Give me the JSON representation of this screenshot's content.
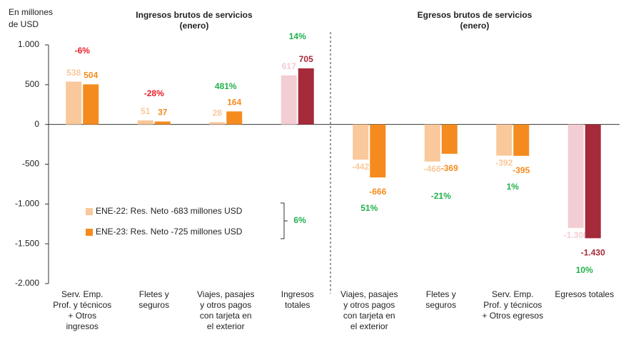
{
  "chart_data": {
    "type": "bar",
    "y_label": [
      "En millones",
      "de USD"
    ],
    "group_titles": [
      [
        "Ingresos brutos de servicios",
        "(enero)"
      ],
      [
        "Egresos brutos de servicios",
        "(enero)"
      ]
    ],
    "categories": [
      [
        "Serv. Emp.",
        "Prof. y técnicos",
        "+ Otros",
        "ingresos"
      ],
      [
        "Fletes y",
        "seguros"
      ],
      [
        "Viajes, pasajes",
        "y otros pagos",
        "con tarjeta en",
        "el exterior"
      ],
      [
        "Ingresos",
        "totales"
      ],
      [
        "Viajes, pasajes",
        "y otros pagos",
        "con tarjeta en",
        "el exterior"
      ],
      [
        "Fletes y",
        "seguros"
      ],
      [
        "Serv. Emp.",
        "Prof. y técnicos",
        "+ Otros egresos"
      ],
      [
        "Egresos totales"
      ]
    ],
    "series": [
      {
        "name": "ENE-22: Res. Neto -683 millones USD",
        "color": "#f9c89b",
        "colors": [
          "#f9c89b",
          "#f9c89b",
          "#f9c89b",
          "#f2cdd3",
          "#f9c89b",
          "#f9c89b",
          "#f9c89b",
          "#f2cdd3"
        ],
        "values": [
          538,
          51,
          28,
          617,
          -442,
          -466,
          -392,
          -1300
        ],
        "value_labels": [
          "538",
          "51",
          "28",
          "617",
          "-442",
          "-466",
          "-392",
          "-1.300"
        ]
      },
      {
        "name": "ENE-23: Res. Neto -725 millones USD",
        "color": "#f58b1f",
        "colors": [
          "#f58b1f",
          "#f58b1f",
          "#f58b1f",
          "#a52a3a",
          "#f58b1f",
          "#f58b1f",
          "#f58b1f",
          "#a52a3a"
        ],
        "values": [
          504,
          37,
          164,
          705,
          -666,
          -369,
          -395,
          -1430
        ],
        "value_labels": [
          "504",
          "37",
          "164",
          "705",
          "-666",
          "-369",
          "-395",
          "-1.430"
        ]
      }
    ],
    "change_labels": [
      "-6%",
      "-28%",
      "481%",
      "14%",
      "51%",
      "-21%",
      "1%",
      "10%"
    ],
    "change_colors": [
      "#e8202a",
      "#e8202a",
      "#22b14c",
      "#22b14c",
      "#22b14c",
      "#22b14c",
      "#22b14c",
      "#22b14c"
    ],
    "legend_change": "6%",
    "legend_change_color": "#22b14c",
    "ylim": [
      -2000,
      1000
    ],
    "yticks": [
      {
        "value": -2000,
        "label": "-2.000"
      },
      {
        "value": -1500,
        "label": "-1.500"
      },
      {
        "value": -1000,
        "label": "-1.000"
      },
      -500,
      0,
      500,
      {
        "value": 1000,
        "label": "1.000"
      }
    ]
  }
}
